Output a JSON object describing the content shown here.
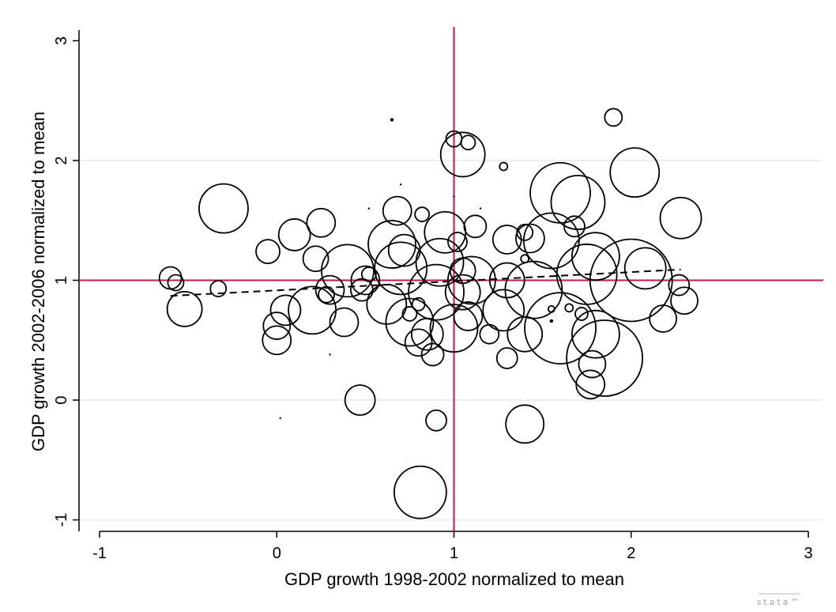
{
  "chart_data": {
    "type": "scatter",
    "title": "",
    "xlabel": "GDP growth 1998-2002 normalized to mean",
    "ylabel": "GDP growth 2002-2006 normalized to mean",
    "xlim": [
      -1.1,
      3.1
    ],
    "ylim": [
      -1.1,
      3.15
    ],
    "xticks": [
      -1,
      0,
      1,
      2,
      3
    ],
    "yticks": [
      -1,
      0,
      1,
      2,
      3
    ],
    "grid": "horizontal",
    "reference_lines": {
      "x": 1,
      "y": 1,
      "color": "#c8164b"
    },
    "fit_line": {
      "style": "dashed",
      "x": [
        -0.6,
        2.28
      ],
      "y": [
        0.87,
        1.09
      ]
    },
    "points": [
      {
        "x": 2.0,
        "y": 1.0,
        "r": 52
      },
      {
        "x": 1.85,
        "y": 0.35,
        "r": 48
      },
      {
        "x": 1.6,
        "y": 0.6,
        "r": 45
      },
      {
        "x": 1.6,
        "y": 1.73,
        "r": 38
      },
      {
        "x": 1.55,
        "y": 1.33,
        "r": 35
      },
      {
        "x": 1.7,
        "y": 1.65,
        "r": 34
      },
      {
        "x": 1.75,
        "y": 1.05,
        "r": 38
      },
      {
        "x": 1.45,
        "y": 0.92,
        "r": 36
      },
      {
        "x": 1.8,
        "y": 0.55,
        "r": 30
      },
      {
        "x": 2.02,
        "y": 1.9,
        "r": 31
      },
      {
        "x": 1.8,
        "y": 1.2,
        "r": 30
      },
      {
        "x": 2.28,
        "y": 1.52,
        "r": 26
      },
      {
        "x": 2.08,
        "y": 1.1,
        "r": 26
      },
      {
        "x": 2.3,
        "y": 0.83,
        "r": 17
      },
      {
        "x": 2.18,
        "y": 0.68,
        "r": 17
      },
      {
        "x": 2.27,
        "y": 0.96,
        "r": 13
      },
      {
        "x": 1.9,
        "y": 2.36,
        "r": 11
      },
      {
        "x": 1.78,
        "y": 0.3,
        "r": 17
      },
      {
        "x": 1.77,
        "y": 0.13,
        "r": 18
      },
      {
        "x": 1.68,
        "y": 1.45,
        "r": 13
      },
      {
        "x": 1.72,
        "y": 0.72,
        "r": 8
      },
      {
        "x": 1.65,
        "y": 0.77,
        "r": 5
      },
      {
        "x": 1.55,
        "y": 0.76,
        "r": 4
      },
      {
        "x": 1.4,
        "y": 1.4,
        "r": 10
      },
      {
        "x": 1.4,
        "y": 1.18,
        "r": 5
      },
      {
        "x": 1.43,
        "y": 1.35,
        "r": 18
      },
      {
        "x": 1.4,
        "y": -0.2,
        "r": 24
      },
      {
        "x": 1.4,
        "y": 0.55,
        "r": 22
      },
      {
        "x": 1.3,
        "y": 1.34,
        "r": 18
      },
      {
        "x": 1.28,
        "y": 1.95,
        "r": 5
      },
      {
        "x": 1.3,
        "y": 1.0,
        "r": 22
      },
      {
        "x": 1.28,
        "y": 0.75,
        "r": 26
      },
      {
        "x": 1.3,
        "y": 0.35,
        "r": 13
      },
      {
        "x": 1.2,
        "y": 0.55,
        "r": 12
      },
      {
        "x": 1.05,
        "y": 2.05,
        "r": 28
      },
      {
        "x": 1.0,
        "y": 2.18,
        "r": 10
      },
      {
        "x": 1.08,
        "y": 2.15,
        "r": 9
      },
      {
        "x": 1.12,
        "y": 1.45,
        "r": 14
      },
      {
        "x": 1.1,
        "y": 1.0,
        "r": 30
      },
      {
        "x": 1.05,
        "y": 0.9,
        "r": 22
      },
      {
        "x": 1.05,
        "y": 1.08,
        "r": 16
      },
      {
        "x": 1.02,
        "y": 1.32,
        "r": 12
      },
      {
        "x": 1.0,
        "y": 0.6,
        "r": 30
      },
      {
        "x": 1.08,
        "y": 0.7,
        "r": 18
      },
      {
        "x": 0.95,
        "y": 1.4,
        "r": 26
      },
      {
        "x": 0.92,
        "y": 1.15,
        "r": 30
      },
      {
        "x": 0.9,
        "y": 0.9,
        "r": 35
      },
      {
        "x": 0.85,
        "y": 0.55,
        "r": 20
      },
      {
        "x": 0.8,
        "y": 0.48,
        "r": 17
      },
      {
        "x": 0.88,
        "y": 0.38,
        "r": 14
      },
      {
        "x": 0.8,
        "y": 0.8,
        "r": 8
      },
      {
        "x": 0.82,
        "y": 1.55,
        "r": 9
      },
      {
        "x": 0.9,
        "y": -0.17,
        "r": 13
      },
      {
        "x": 0.81,
        "y": -0.77,
        "r": 33
      },
      {
        "x": 0.72,
        "y": 1.25,
        "r": 20
      },
      {
        "x": 0.7,
        "y": 1.1,
        "r": 33
      },
      {
        "x": 0.65,
        "y": 1.3,
        "r": 30
      },
      {
        "x": 0.68,
        "y": 1.58,
        "r": 18
      },
      {
        "x": 0.62,
        "y": 0.8,
        "r": 25
      },
      {
        "x": 0.75,
        "y": 0.65,
        "r": 30
      },
      {
        "x": 0.75,
        "y": 0.72,
        "r": 9
      },
      {
        "x": 0.52,
        "y": 1.05,
        "r": 9
      },
      {
        "x": 0.5,
        "y": 1.0,
        "r": 18
      },
      {
        "x": 0.48,
        "y": 0.92,
        "r": 14
      },
      {
        "x": 0.47,
        "y": 0.0,
        "r": 19
      },
      {
        "x": 0.4,
        "y": 1.08,
        "r": 33
      },
      {
        "x": 0.38,
        "y": 0.65,
        "r": 18
      },
      {
        "x": 0.3,
        "y": 0.92,
        "r": 18
      },
      {
        "x": 0.28,
        "y": 0.88,
        "r": 10
      },
      {
        "x": 0.25,
        "y": 1.48,
        "r": 18
      },
      {
        "x": 0.22,
        "y": 1.18,
        "r": 16
      },
      {
        "x": 0.2,
        "y": 0.75,
        "r": 30
      },
      {
        "x": 0.1,
        "y": 1.38,
        "r": 20
      },
      {
        "x": 0.05,
        "y": 0.75,
        "r": 19
      },
      {
        "x": 0.0,
        "y": 0.62,
        "r": 17
      },
      {
        "x": 0.0,
        "y": 0.5,
        "r": 18
      },
      {
        "x": -0.05,
        "y": 1.24,
        "r": 15
      },
      {
        "x": -0.3,
        "y": 1.6,
        "r": 31
      },
      {
        "x": -0.33,
        "y": 0.93,
        "r": 10
      },
      {
        "x": -0.52,
        "y": 0.76,
        "r": 22
      },
      {
        "x": -0.6,
        "y": 1.02,
        "r": 14
      },
      {
        "x": -0.57,
        "y": 0.98,
        "r": 10
      },
      {
        "x": 0.65,
        "y": 2.34,
        "r": 2
      },
      {
        "x": 0.02,
        "y": -0.15,
        "r": 1
      },
      {
        "x": 0.52,
        "y": 1.6,
        "r": 1
      },
      {
        "x": 0.7,
        "y": 1.8,
        "r": 1
      },
      {
        "x": 1.0,
        "y": 1.7,
        "r": 1
      },
      {
        "x": 1.55,
        "y": 0.66,
        "r": 2
      },
      {
        "x": 0.3,
        "y": 0.38,
        "r": 1
      },
      {
        "x": 1.15,
        "y": 1.6,
        "r": 1
      }
    ]
  },
  "watermark": "stata™"
}
